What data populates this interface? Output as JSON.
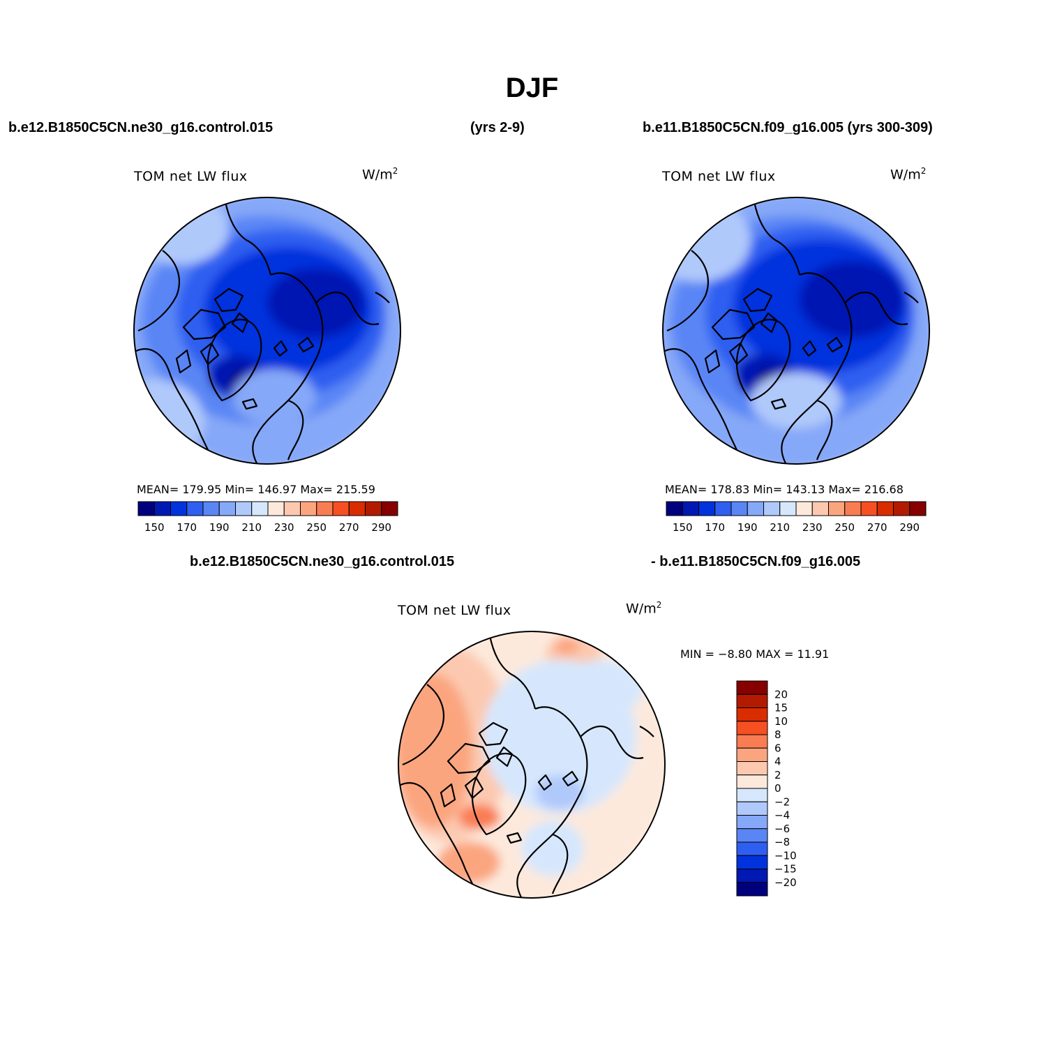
{
  "title": "DJF",
  "headers": {
    "case1": "b.e12.B1850C5CN.ne30_g16.control.015",
    "case1_years": "(yrs 2-9)",
    "case2": "b.e11.B1850C5CN.f09_g16.005 (yrs 300-309)",
    "diff_left": "b.e12.B1850C5CN.ne30_g16.control.015",
    "diff_right": "- b.e11.B1850C5CN.f09_g16.005"
  },
  "panels": [
    {
      "variable": "TOM net LW flux",
      "units": "W/m",
      "units_exp": "2",
      "stats": "MEAN= 179.95   Min= 146.97   Max= 215.59"
    },
    {
      "variable": "TOM net LW flux",
      "units": "W/m",
      "units_exp": "2",
      "stats": "MEAN= 178.83   Min= 143.13   Max= 216.68"
    },
    {
      "variable": "TOM net LW flux",
      "units": "W/m",
      "units_exp": "2",
      "stats": "MIN =   −8.80  MAX =   11.91"
    }
  ],
  "colorbar_abs": {
    "colors": [
      "#00007f",
      "#0019b2",
      "#0033dd",
      "#2f5ff0",
      "#5a86f5",
      "#86a8f8",
      "#b0c9fb",
      "#d6e7fd",
      "#fde9dc",
      "#fcc9b0",
      "#fba57f",
      "#f97d52",
      "#f64f22",
      "#d92d00",
      "#b31b00",
      "#860000"
    ],
    "labels": [
      "150",
      "170",
      "190",
      "210",
      "230",
      "250",
      "270",
      "290"
    ]
  },
  "colorbar_diff": {
    "colors": [
      "#860000",
      "#b31b00",
      "#d92d00",
      "#f64f22",
      "#f97d52",
      "#fba57f",
      "#fcc9b0",
      "#fde9dc",
      "#d6e7fd",
      "#b0c9fb",
      "#86a8f8",
      "#5a86f5",
      "#2f5ff0",
      "#0033dd",
      "#0019b2",
      "#00007f"
    ],
    "labels": [
      "20",
      "15",
      "10",
      "8",
      "6",
      "4",
      "2",
      "0",
      "−2",
      "−4",
      "−6",
      "−8",
      "−10",
      "−15",
      "−20"
    ]
  }
}
